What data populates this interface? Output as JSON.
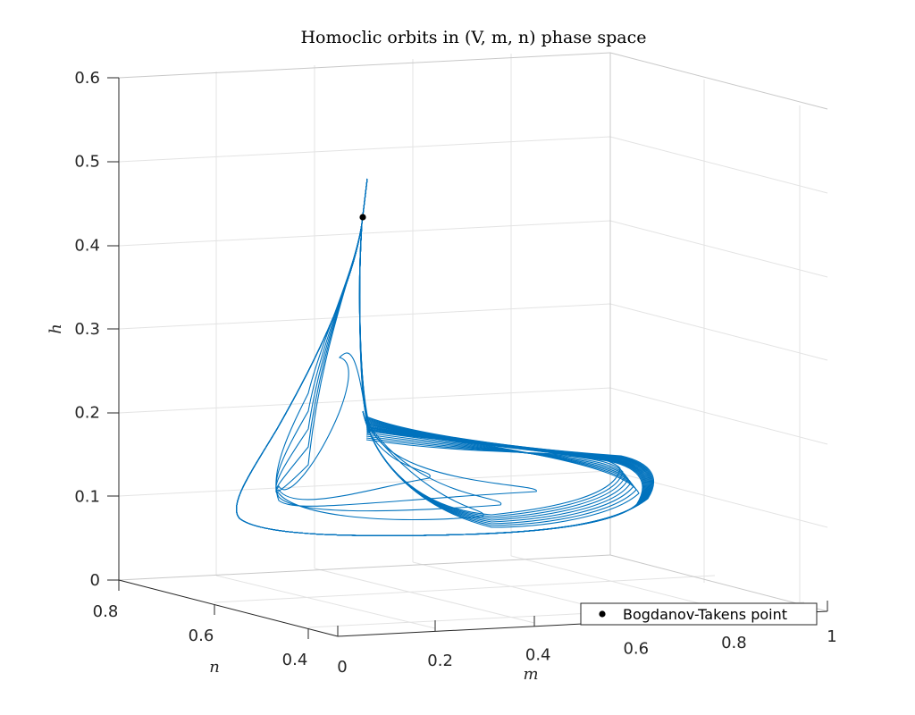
{
  "chart_data": {
    "type": "line",
    "title": "Homoclic orbits in (V, m, n) phase space",
    "xlabel": "m",
    "ylabel": "n",
    "zlabel": "h",
    "xlim": [
      0,
      1
    ],
    "ylim": [
      0.4,
      0.8
    ],
    "zlim": [
      0,
      0.6
    ],
    "x_ticks": [
      "0",
      "0.2",
      "0.4",
      "0.6",
      "0.8",
      "1"
    ],
    "y_ticks": [
      "0.4",
      "0.6",
      "0.8"
    ],
    "z_ticks": [
      "0",
      "0.1",
      "0.2",
      "0.3",
      "0.4",
      "0.5",
      "0.6"
    ],
    "grid": true,
    "line_color": "#0072BD",
    "legend": {
      "placement": "bottom-right",
      "entries": [
        "Bogdanov-Takens point"
      ]
    },
    "bt_point": {
      "label": "Bogdanov-Takens point",
      "m": 0.1,
      "n": 0.62,
      "h": 0.43,
      "color": "#000000"
    },
    "series_note": "family of homoclinic orbits emanating from the Bogdanov-Takens point"
  }
}
